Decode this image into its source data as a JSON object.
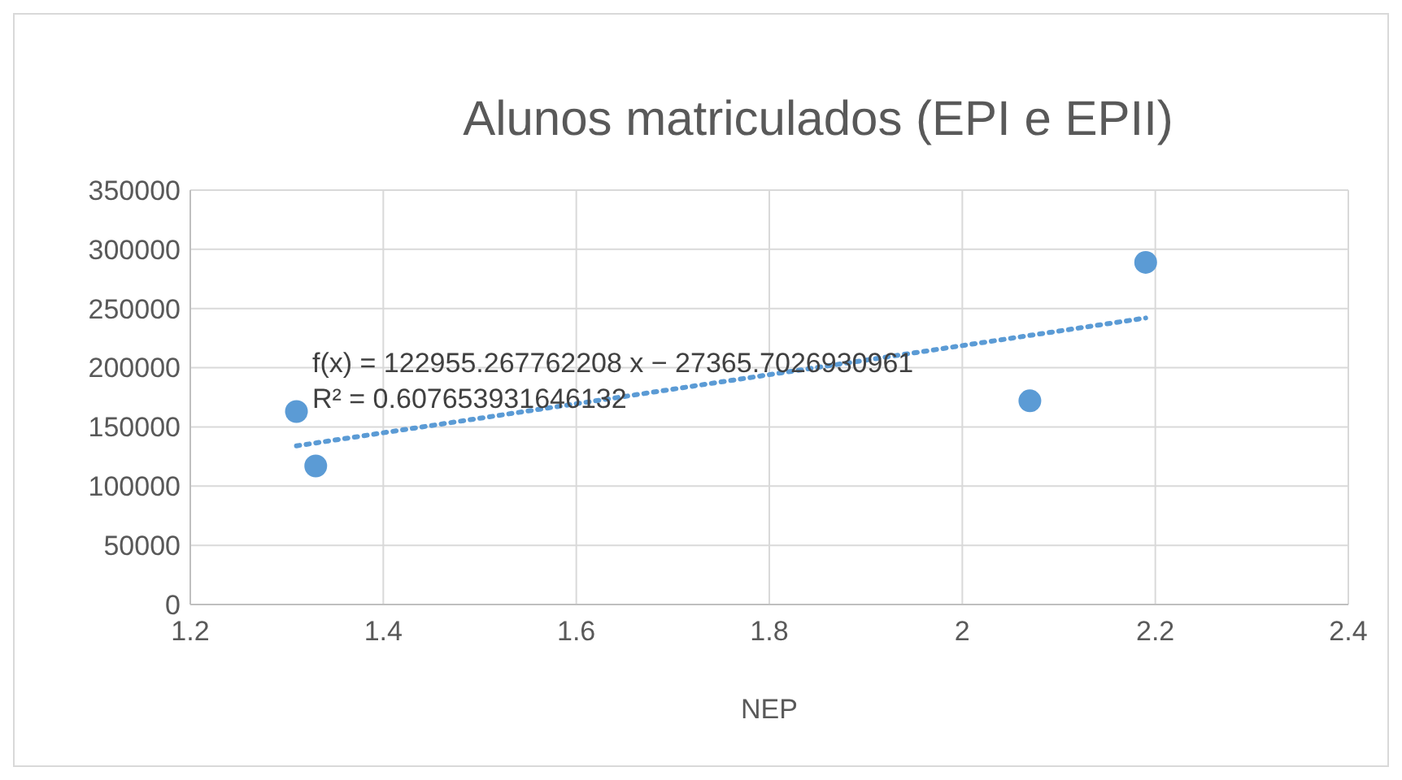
{
  "chart_data": {
    "type": "scatter",
    "title": "Alunos matriculados (EPI e EPII)",
    "xlabel": "NEP",
    "xlim": [
      1.2,
      2.4
    ],
    "xticks": [
      1.2,
      1.4,
      1.6,
      1.8,
      2,
      2.2,
      2.4
    ],
    "ylim": [
      0,
      350000
    ],
    "yticks": [
      0,
      50000,
      100000,
      150000,
      200000,
      250000,
      300000,
      350000
    ],
    "grid": true,
    "marker": "circle",
    "series": [
      {
        "color": "#5b9bd5",
        "x": [
          1.31,
          1.33,
          2.07,
          2.19
        ],
        "values": [
          163000,
          117000,
          172000,
          289000
        ]
      },
      {
        "type": "line",
        "color": "#5b9bd5",
        "line_style": "dotted",
        "marker": "none",
        "x": [
          1.31,
          2.19
        ],
        "values": [
          134000,
          242000
        ]
      }
    ],
    "annotations": [
      "f(x) = 122955.267762208 x − 27365.7026930961",
      "R² = 0.607653931646132"
    ]
  }
}
